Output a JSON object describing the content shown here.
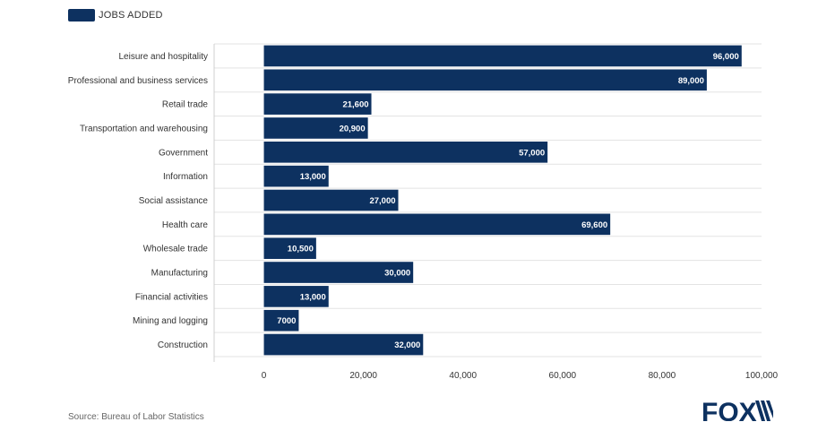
{
  "colors": {
    "bar": "#0d3160",
    "grid": "#e3e3e3",
    "axis": "#cfcfcf",
    "label_text": "#ffffff",
    "text": "#333333"
  },
  "legend": {
    "label": "JOBS ADDED"
  },
  "source": "Source: Bureau of Labor Statistics",
  "logo": {
    "text": "FOX",
    "icon": "fox-news-logo"
  },
  "chart_data": {
    "type": "bar",
    "orientation": "horizontal",
    "title": "",
    "xlabel": "",
    "ylabel": "",
    "xlim": [
      -10000,
      100000
    ],
    "ticks": [
      "0",
      "20,000",
      "40,000",
      "60,000",
      "80,000",
      "100,000"
    ],
    "tick_values": [
      0,
      20000,
      40000,
      60000,
      80000,
      100000
    ],
    "grid": true,
    "legend": "top-left",
    "series": [
      {
        "name": "JOBS ADDED"
      }
    ],
    "categories": [
      "Leisure and hospitality",
      "Professional and business services",
      "Retail trade",
      "Transportation and warehousing",
      "Government",
      "Information",
      "Social assistance",
      "Health care",
      "Wholesale trade",
      "Manufacturing",
      "Financial activities",
      "Mining and logging",
      "Construction"
    ],
    "values": [
      96000,
      89000,
      21600,
      20900,
      57000,
      13000,
      27000,
      69600,
      10500,
      30000,
      13000,
      7000,
      32000
    ],
    "value_labels": [
      "96,000",
      "89,000",
      "21,600",
      "20,900",
      "57,000",
      "13,000",
      "27,000",
      "69,600",
      "10,500",
      "30,000",
      "13,000",
      "7000",
      "32,000"
    ]
  }
}
